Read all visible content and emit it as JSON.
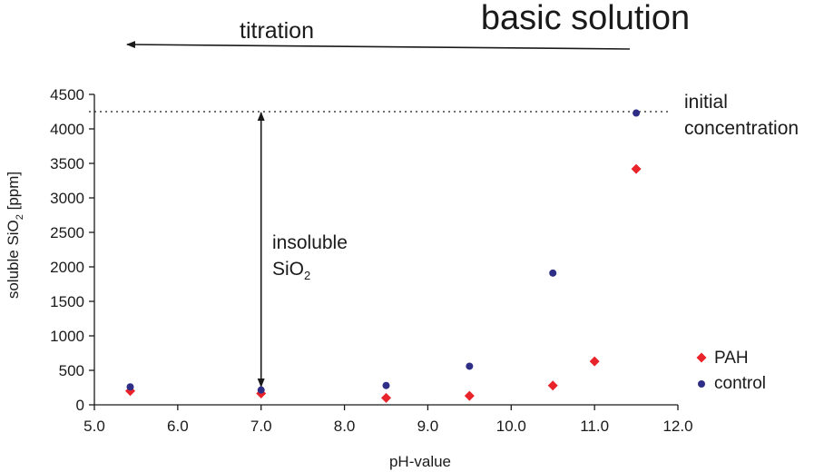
{
  "chart_data": {
    "type": "scatter",
    "title": "basic solution",
    "titration_label": "titration",
    "xlabel": "pH-value",
    "ylabel": "soluble SiO",
    "ylabel_subscript": "2",
    "ylabel_suffix": " [ppm]",
    "xlim": [
      5.0,
      12.0
    ],
    "ylim": [
      0,
      4500
    ],
    "xticks": [
      "5.0",
      "6.0",
      "7.0",
      "8.0",
      "9.0",
      "10.0",
      "11.0",
      "12.0"
    ],
    "yticks": [
      "0",
      "500",
      "1000",
      "1500",
      "2000",
      "2500",
      "3000",
      "3500",
      "4000",
      "4500"
    ],
    "initial_concentration": 4250,
    "initial_concentration_label_line1": "initial",
    "initial_concentration_label_line2": "concentration",
    "insoluble_label_line1": "insoluble",
    "insoluble_label_line2": "SiO",
    "insoluble_label_subscript": "2",
    "insoluble_arrow_x": 7.0,
    "insoluble_arrow_y": [
      250,
      4250
    ],
    "series": [
      {
        "name": "PAH",
        "marker": "diamond",
        "color": "#e8232a",
        "x": [
          5.43,
          7.0,
          8.5,
          9.5,
          10.5,
          11.0,
          11.5
        ],
        "y": [
          200,
          165,
          100,
          130,
          280,
          630,
          3420
        ]
      },
      {
        "name": "control",
        "marker": "circle",
        "color": "#2e2e86",
        "x": [
          5.43,
          7.0,
          8.5,
          9.5,
          10.5,
          11.5
        ],
        "y": [
          260,
          215,
          280,
          560,
          1910,
          4230
        ]
      }
    ]
  }
}
